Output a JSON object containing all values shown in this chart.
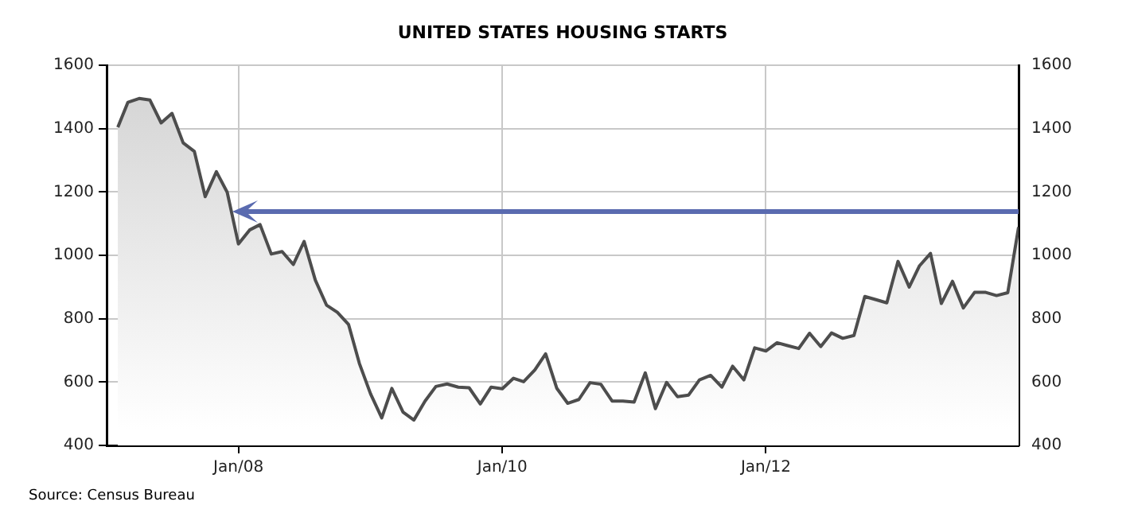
{
  "chart_data": {
    "type": "area",
    "title": "UNITED STATES HOUSING STARTS",
    "annotations": [
      "Source: Census Bureau"
    ],
    "x": [
      "2007-02",
      "2007-03",
      "2007-04",
      "2007-05",
      "2007-06",
      "2007-07",
      "2007-08",
      "2007-09",
      "2007-10",
      "2007-11",
      "2007-12",
      "2008-01",
      "2008-02",
      "2008-03",
      "2008-04",
      "2008-05",
      "2008-06",
      "2008-07",
      "2008-08",
      "2008-09",
      "2008-10",
      "2008-11",
      "2008-12",
      "2009-01",
      "2009-02",
      "2009-03",
      "2009-04",
      "2009-05",
      "2009-06",
      "2009-07",
      "2009-08",
      "2009-09",
      "2009-10",
      "2009-11",
      "2009-12",
      "2010-01",
      "2010-02",
      "2010-03",
      "2010-04",
      "2010-05",
      "2010-06",
      "2010-07",
      "2010-08",
      "2010-09",
      "2010-10",
      "2010-11",
      "2010-12",
      "2011-01",
      "2011-02",
      "2011-03",
      "2011-04",
      "2011-05",
      "2011-06",
      "2011-07",
      "2011-08",
      "2011-09",
      "2011-10",
      "2011-11",
      "2011-12",
      "2012-01",
      "2012-02",
      "2012-03",
      "2012-04",
      "2012-05",
      "2012-06",
      "2012-07",
      "2012-08",
      "2012-09",
      "2012-10",
      "2012-11",
      "2012-12",
      "2013-01",
      "2013-02",
      "2013-03",
      "2013-04",
      "2013-05",
      "2013-06",
      "2013-07",
      "2013-08",
      "2013-09",
      "2013-10",
      "2013-11",
      "2013-12"
    ],
    "series": [
      {
        "color": "#4d4d4d",
        "values": [
          1404,
          1483,
          1495,
          1490,
          1418,
          1448,
          1355,
          1328,
          1185,
          1264,
          1199,
          1036,
          1080,
          1097,
          1004,
          1012,
          971,
          1044,
          922,
          843,
          820,
          782,
          659,
          563,
          487,
          580,
          505,
          480,
          540,
          586,
          594,
          584,
          582,
          531,
          584,
          579,
          612,
          601,
          638,
          689,
          580,
          533,
          545,
          598,
          593,
          540,
          540,
          537,
          629,
          516,
          599,
          554,
          559,
          607,
          621,
          584,
          650,
          607,
          708,
          698,
          724,
          715,
          706,
          754,
          712,
          755,
          738,
          747,
          870,
          860,
          850,
          981,
          900,
          966,
          1006,
          848,
          918,
          834,
          883,
          883,
          873,
          882,
          1089
        ]
      }
    ],
    "xlim": [
      "2007-01",
      "2013-12"
    ],
    "xticks": [
      {
        "value": "2008-01",
        "label": "Jan/08"
      },
      {
        "value": "2010-01",
        "label": "Jan/10"
      },
      {
        "value": "2012-01",
        "label": "Jan/12"
      }
    ],
    "ylim": [
      400,
      1600
    ],
    "yticks": [
      400,
      600,
      800,
      1000,
      1200,
      1400,
      1600
    ],
    "y2lim": [
      400,
      1600
    ],
    "y2ticks": [
      400,
      600,
      800,
      1000,
      1200,
      1400,
      1600
    ],
    "grid": true,
    "legend": false,
    "marker": "none",
    "line_style": "solid"
  }
}
